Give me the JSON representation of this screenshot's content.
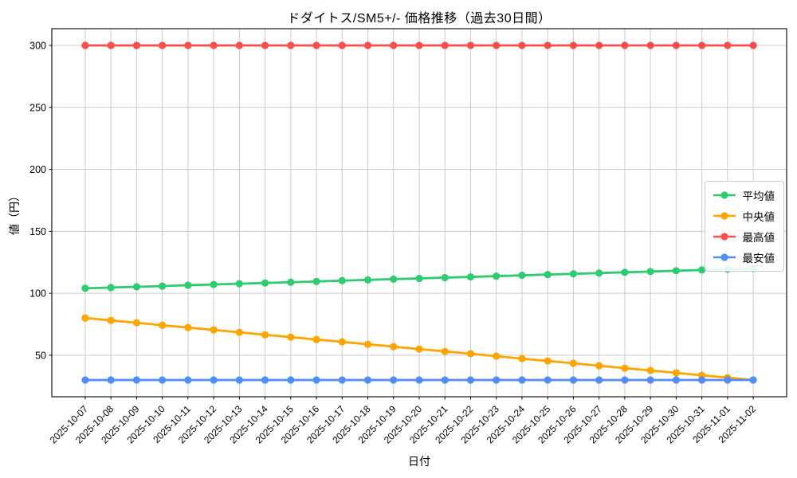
{
  "chart_data": {
    "type": "line",
    "title": "ドダイトス/SM5+/- 価格推移（過去30日間）",
    "xlabel": "日付",
    "ylabel": "値（円）",
    "x": [
      "2025-10-07",
      "2025-10-08",
      "2025-10-09",
      "2025-10-10",
      "2025-10-11",
      "2025-10-12",
      "2025-10-13",
      "2025-10-14",
      "2025-10-15",
      "2025-10-16",
      "2025-10-17",
      "2025-10-18",
      "2025-10-19",
      "2025-10-20",
      "2025-10-21",
      "2025-10-22",
      "2025-10-23",
      "2025-10-24",
      "2025-10-25",
      "2025-10-26",
      "2025-10-27",
      "2025-10-28",
      "2025-10-29",
      "2025-10-30",
      "2025-10-31",
      "2025-11-01",
      "2025-11-02"
    ],
    "series": [
      {
        "name": "平均値",
        "color": "#2ecc71",
        "values": [
          104.0,
          104.6,
          105.2,
          105.8,
          106.5,
          107.1,
          107.7,
          108.3,
          108.9,
          109.5,
          110.2,
          110.8,
          111.4,
          112.0,
          112.6,
          113.2,
          113.8,
          114.5,
          115.1,
          115.7,
          116.3,
          116.9,
          117.5,
          118.2,
          118.8,
          119.4,
          120.0
        ]
      },
      {
        "name": "中央値",
        "color": "#ffa500",
        "values": [
          80.0,
          78.1,
          76.2,
          74.2,
          72.3,
          70.4,
          68.5,
          66.5,
          64.6,
          62.7,
          60.8,
          58.8,
          56.9,
          55.0,
          53.1,
          51.2,
          49.2,
          47.3,
          45.4,
          43.5,
          41.5,
          39.6,
          37.7,
          35.8,
          33.8,
          31.9,
          30.0
        ]
      },
      {
        "name": "最高値",
        "color": "#fa4d4d",
        "values": [
          300,
          300,
          300,
          300,
          300,
          300,
          300,
          300,
          300,
          300,
          300,
          300,
          300,
          300,
          300,
          300,
          300,
          300,
          300,
          300,
          300,
          300,
          300,
          300,
          300,
          300,
          300
        ]
      },
      {
        "name": "最安値",
        "color": "#4d8ef7",
        "values": [
          30,
          30,
          30,
          30,
          30,
          30,
          30,
          30,
          30,
          30,
          30,
          30,
          30,
          30,
          30,
          30,
          30,
          30,
          30,
          30,
          30,
          30,
          30,
          30,
          30,
          30,
          30
        ]
      }
    ],
    "yticks": [
      50,
      100,
      150,
      200,
      250,
      300
    ],
    "ylim": [
      16.5,
      313.5
    ],
    "grid": true,
    "legend_position": "center right",
    "colors": {
      "grid": "#cccccc",
      "spine": "#000000",
      "background": "#ffffff",
      "legend_border": "#cccccc"
    }
  }
}
